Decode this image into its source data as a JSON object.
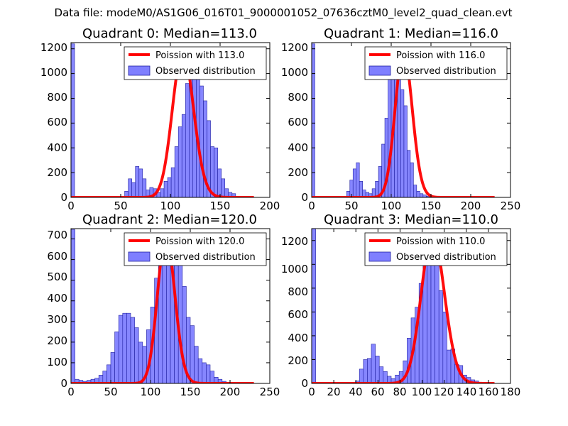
{
  "suptitle": "Data file: modeM0/AS1G06_016T01_9000001052_07636cztM0_level2_quad_clean.evt",
  "colors": {
    "poisson": "#ff0000",
    "hist_fill": "#7f7fff",
    "hist_edge": "#2020a0",
    "axes": "#000000",
    "background": "#ffffff"
  },
  "chart_data": [
    {
      "type": "bar",
      "title": "Quadrant 0: Median=113.0",
      "xlim": [
        0,
        200
      ],
      "ylim": [
        0,
        1250
      ],
      "xticks": [
        "0",
        "50",
        "100",
        "150",
        "200"
      ],
      "yticks": [
        "0",
        "200",
        "400",
        "600",
        "800",
        "1000",
        "1200"
      ],
      "legend": [
        "Poission with 113.0",
        "Observed distribution"
      ],
      "legend_position": "top-right",
      "poisson_mean": 113.0,
      "poisson_peak": 1180,
      "bins": {
        "start": 0,
        "width": 3.6,
        "counts": [
          1240,
          0,
          0,
          0,
          0,
          0,
          0,
          0,
          0,
          0,
          0,
          0,
          0,
          0,
          0,
          50,
          150,
          120,
          250,
          230,
          150,
          60,
          80,
          70,
          40,
          70,
          130,
          160,
          240,
          410,
          570,
          670,
          920,
          1120,
          1180,
          1050,
          900,
          780,
          620,
          410,
          400,
          230,
          150,
          70,
          40,
          30,
          5,
          0,
          0,
          0
        ]
      }
    },
    {
      "type": "bar",
      "title": "Quadrant 1: Median=116.0",
      "xlim": [
        0,
        250
      ],
      "ylim": [
        0,
        1250
      ],
      "xticks": [
        "0",
        "50",
        "100",
        "150",
        "200",
        "250"
      ],
      "yticks": [
        "0",
        "200",
        "400",
        "600",
        "800",
        "1000",
        "1200"
      ],
      "legend": [
        "Poission with 116.0",
        "Observed distribution"
      ],
      "legend_position": "top-right",
      "poisson_mean": 116.0,
      "poisson_peak": 1180,
      "bins": {
        "start": 0,
        "width": 4.0,
        "counts": [
          1240,
          0,
          0,
          0,
          0,
          0,
          0,
          0,
          0,
          0,
          0,
          50,
          140,
          230,
          280,
          130,
          60,
          40,
          30,
          70,
          130,
          250,
          430,
          640,
          980,
          1140,
          1200,
          980,
          870,
          740,
          380,
          280,
          100,
          50,
          30,
          20,
          10,
          0,
          0,
          0,
          0,
          0,
          0,
          0,
          0,
          0,
          0,
          0,
          0,
          0
        ]
      }
    },
    {
      "type": "bar",
      "title": "Quadrant 2: Median=120.0",
      "xlim": [
        0,
        250
      ],
      "ylim": [
        0,
        750
      ],
      "xticks": [
        "0",
        "50",
        "100",
        "150",
        "200",
        "250"
      ],
      "yticks": [
        "0",
        "100",
        "200",
        "300",
        "400",
        "500",
        "600",
        "700"
      ],
      "legend": [
        "Poission with 120.0",
        "Observed distribution"
      ],
      "legend_position": "top-right",
      "poisson_mean": 120.0,
      "poisson_peak": 710,
      "bins": {
        "start": 0,
        "width": 5.0,
        "counts": [
          745,
          20,
          15,
          10,
          15,
          20,
          25,
          40,
          60,
          90,
          150,
          250,
          330,
          340,
          340,
          320,
          270,
          200,
          180,
          260,
          370,
          510,
          630,
          650,
          700,
          680,
          640,
          580,
          470,
          320,
          280,
          180,
          120,
          100,
          90,
          60,
          30,
          20,
          10,
          5,
          0,
          0,
          0,
          0,
          0,
          0,
          0,
          0,
          0,
          0
        ]
      }
    },
    {
      "type": "bar",
      "title": "Quadrant 3: Median=110.0",
      "xlim": [
        0,
        180
      ],
      "ylim": [
        0,
        1300
      ],
      "xticks": [
        "0",
        "20",
        "40",
        "60",
        "80",
        "100",
        "120",
        "140",
        "160",
        "180"
      ],
      "yticks": [
        "0",
        "200",
        "400",
        "600",
        "800",
        "1000",
        "1200"
      ],
      "legend": [
        "Poission with 110.0",
        "Observed distribution"
      ],
      "legend_position": "top-right",
      "poisson_mean": 110.0,
      "poisson_peak": 1250,
      "bins": {
        "start": 0,
        "width": 3.6,
        "counts": [
          1300,
          0,
          0,
          0,
          0,
          0,
          0,
          0,
          0,
          0,
          0,
          20,
          120,
          200,
          210,
          330,
          230,
          140,
          100,
          60,
          40,
          70,
          100,
          190,
          380,
          550,
          640,
          840,
          1250,
          1230,
          1240,
          1180,
          780,
          600,
          280,
          290,
          160,
          150,
          70,
          50,
          30,
          20,
          0,
          0,
          0,
          0,
          0,
          0,
          0,
          0
        ]
      }
    }
  ]
}
